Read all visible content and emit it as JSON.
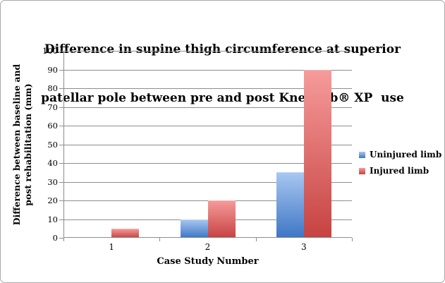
{
  "frame": {
    "background": "#ffffff",
    "border_color": "#a9a9a9"
  },
  "chart_data": {
    "type": "bar",
    "title": "Difference in supine thigh circumference at superior patellar pole between pre and post Kneehab® XP  use",
    "title_lines": [
      "Difference in supine thigh circumference at superior",
      "patellar pole between pre and post Kneehab® XP  use"
    ],
    "categories": [
      "1",
      "2",
      "3"
    ],
    "series": [
      {
        "name": "Uninjured limb",
        "values": [
          0,
          10,
          35
        ],
        "color_top": "#a9c7f0",
        "color_bottom": "#3e76c6"
      },
      {
        "name": "Injured limb",
        "values": [
          5,
          20,
          90
        ],
        "color_top": "#f69b9b",
        "color_bottom": "#c64341"
      }
    ],
    "xlabel": "Case Study Number",
    "ylabel": "Difference between baseline and post rehabilitation (mm)",
    "ylim": [
      0,
      100
    ],
    "ytick_step": 10,
    "yticks": [
      0,
      10,
      20,
      30,
      40,
      50,
      60,
      70,
      80,
      90,
      100
    ],
    "grid": true,
    "legend_position": "right",
    "gridline_color": "#8d8d8d",
    "axis_color": "#8d8d8d"
  }
}
